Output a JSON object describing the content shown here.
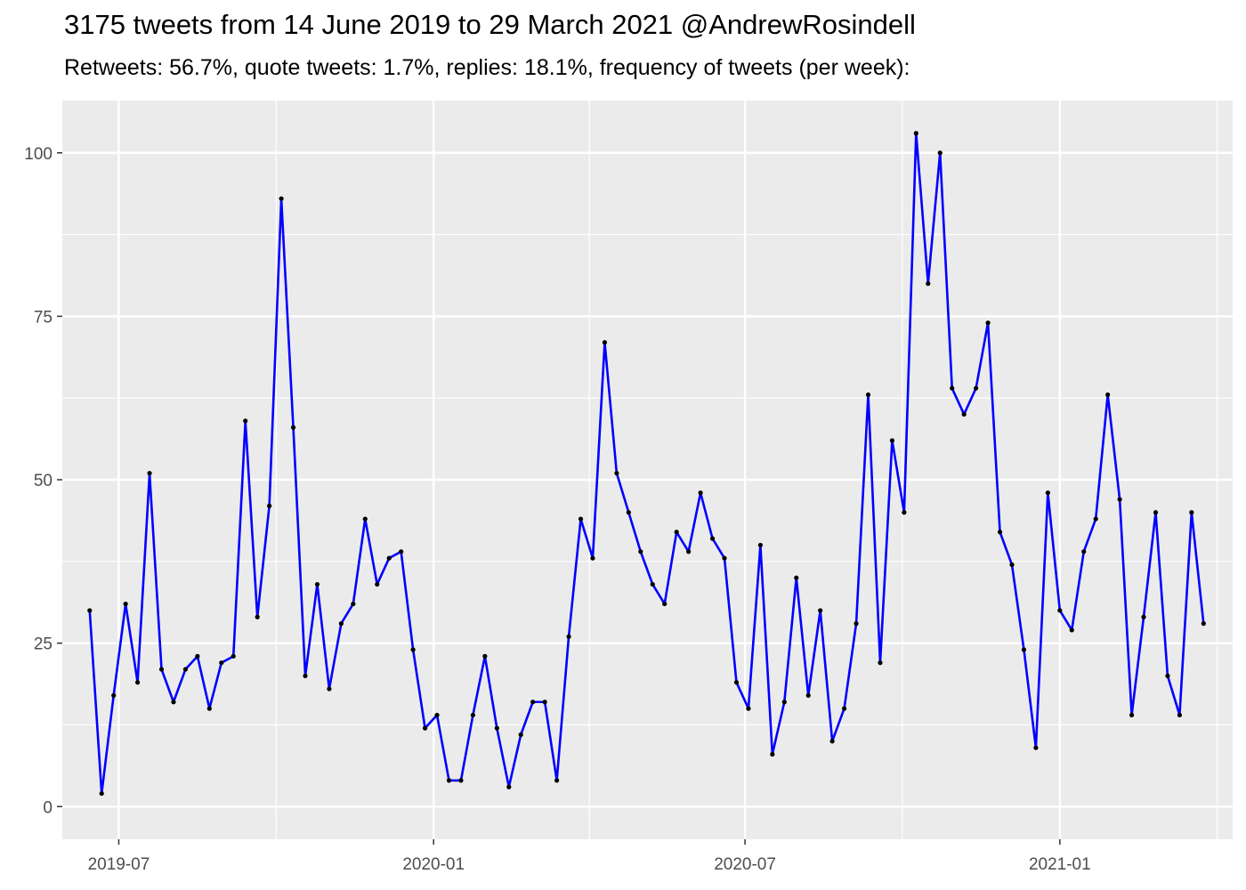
{
  "title": "3175 tweets from 14 June 2019 to 29 March 2021 @AndrewRosindell",
  "subtitle": "Retweets: 56.7%, quote tweets: 1.7%, replies: 18.1%, frequency of tweets (per week):",
  "chart_data": {
    "type": "line",
    "title": "3175 tweets from 14 June 2019 to 29 March 2021 @AndrewRosindell",
    "subtitle": "Retweets: 56.7%, quote tweets: 1.7%, replies: 18.1%, frequency of tweets (per week):",
    "xlabel": "",
    "ylabel": "",
    "x_start": "2019-06-14",
    "x_step_days": 7,
    "xlim": [
      "2019-05-29",
      "2021-04-12"
    ],
    "ylim": [
      -5,
      108
    ],
    "y_ticks": [
      0,
      25,
      50,
      75,
      100
    ],
    "x_ticks": [
      {
        "date": "2019-07-01",
        "label": "2019-07"
      },
      {
        "date": "2020-01-01",
        "label": "2020-01"
      },
      {
        "date": "2020-07-01",
        "label": "2020-07"
      },
      {
        "date": "2021-01-01",
        "label": "2021-01"
      }
    ],
    "grid": true,
    "line_color": "#0000ff",
    "point_color": "#000000",
    "panel_background": "#ebebeb",
    "values": [
      30,
      2,
      17,
      31,
      19,
      51,
      21,
      16,
      21,
      23,
      15,
      22,
      23,
      59,
      29,
      46,
      93,
      58,
      20,
      34,
      18,
      28,
      31,
      44,
      34,
      38,
      39,
      24,
      12,
      14,
      4,
      4,
      14,
      23,
      12,
      3,
      11,
      16,
      16,
      4,
      26,
      44,
      38,
      71,
      51,
      45,
      39,
      34,
      31,
      42,
      39,
      48,
      41,
      38,
      19,
      15,
      40,
      8,
      16,
      35,
      17,
      30,
      10,
      15,
      28,
      63,
      22,
      56,
      45,
      103,
      80,
      100,
      64,
      60,
      64,
      74,
      42,
      37,
      24,
      9,
      48,
      30,
      27,
      39,
      44,
      63,
      47,
      14,
      29,
      45,
      20,
      14,
      45,
      28
    ]
  }
}
